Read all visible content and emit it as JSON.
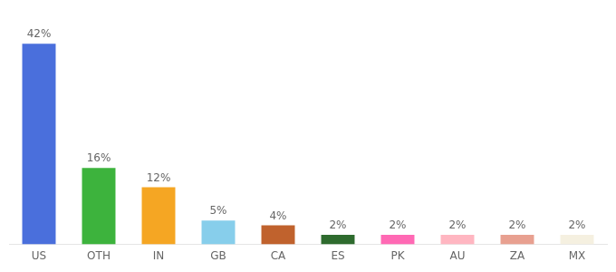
{
  "chart_data": {
    "type": "bar",
    "categories": [
      "US",
      "OTH",
      "IN",
      "GB",
      "CA",
      "ES",
      "PK",
      "AU",
      "ZA",
      "MX"
    ],
    "values": [
      42,
      16,
      12,
      5,
      4,
      2,
      2,
      2,
      2,
      2
    ],
    "value_labels": [
      "42%",
      "16%",
      "12%",
      "5%",
      "4%",
      "2%",
      "2%",
      "2%",
      "2%",
      "2%"
    ],
    "colors": [
      "#4a6fdc",
      "#3db33d",
      "#f5a623",
      "#87ceeb",
      "#c0622d",
      "#2e6b2e",
      "#ff69b4",
      "#ffb6c1",
      "#e8a090",
      "#f5f0e0"
    ],
    "ylim": [
      0,
      47
    ],
    "grid": false,
    "data_labels": true,
    "tick_labels": "x"
  }
}
